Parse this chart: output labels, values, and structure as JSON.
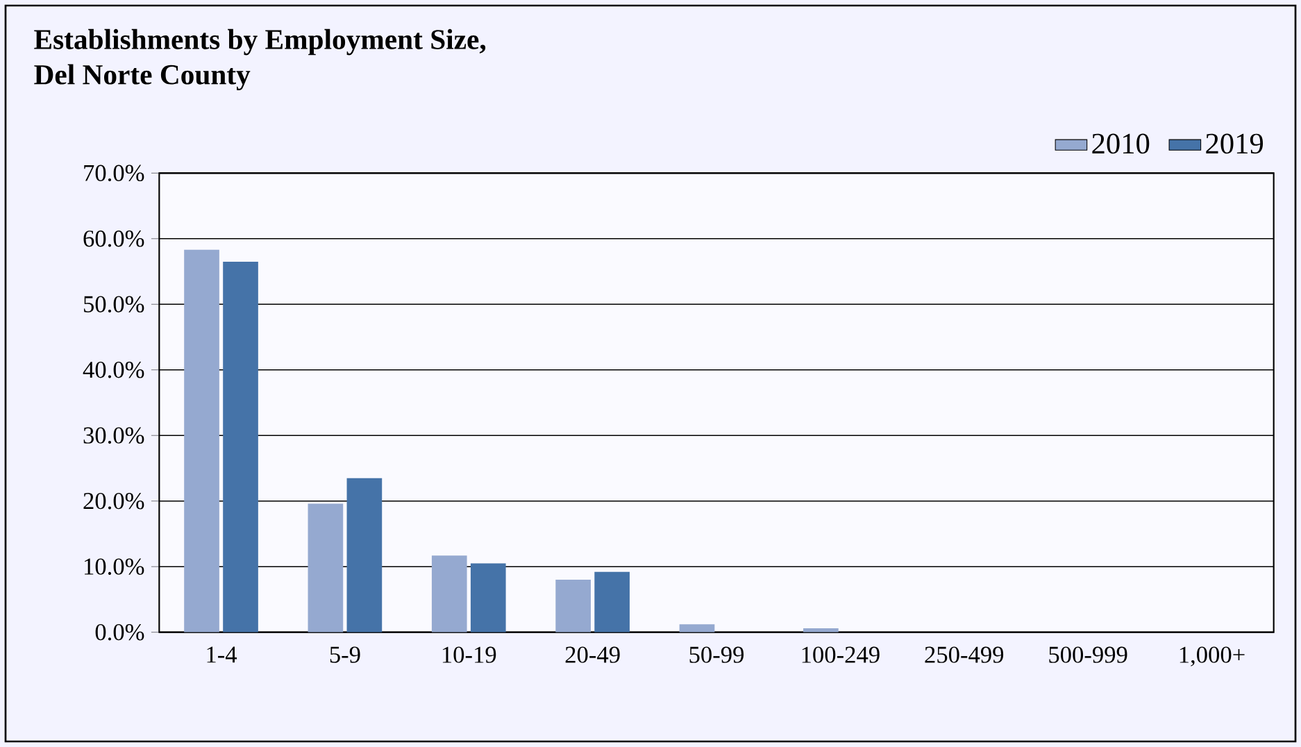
{
  "chart_data": {
    "type": "bar",
    "title": "Establishments by Employment Size,\nDel Norte County",
    "categories": [
      "1-4",
      "5-9",
      "10-19",
      "20-49",
      "50-99",
      "100-249",
      "250-499",
      "500-999",
      "1,000+"
    ],
    "series": [
      {
        "name": "2010",
        "color": "#95a9d0",
        "values": [
          58.3,
          19.6,
          11.7,
          8.0,
          1.2,
          0.6,
          0,
          0,
          0
        ]
      },
      {
        "name": "2019",
        "color": "#4573a8",
        "values": [
          56.5,
          23.5,
          10.5,
          9.2,
          0,
          0,
          0,
          0,
          0
        ]
      }
    ],
    "ylim": [
      0,
      70
    ],
    "yticks": [
      {
        "value": 0,
        "label": "0.0%"
      },
      {
        "value": 10,
        "label": "10.0%"
      },
      {
        "value": 20,
        "label": "20.0%"
      },
      {
        "value": 30,
        "label": "30.0%"
      },
      {
        "value": 40,
        "label": "40.0%"
      },
      {
        "value": 50,
        "label": "50.0%"
      },
      {
        "value": 60,
        "label": "60.0%"
      },
      {
        "value": 70,
        "label": "70.0%"
      }
    ],
    "grid": "y",
    "legend": "top right"
  }
}
